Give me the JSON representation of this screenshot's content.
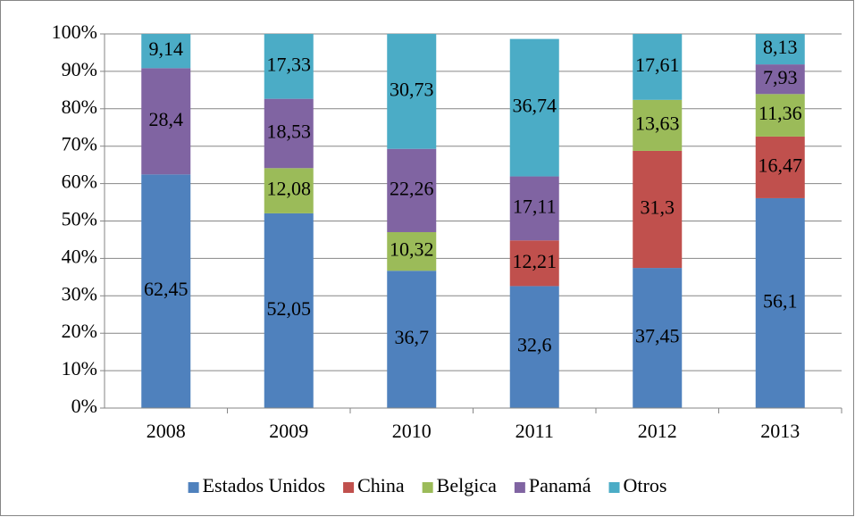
{
  "chart_data": {
    "type": "stacked_bar",
    "categories": [
      "2008",
      "2009",
      "2010",
      "2011",
      "2012",
      "2013"
    ],
    "series": [
      {
        "name": "Estados Unidos",
        "color": "#4f81bd",
        "values": [
          62.45,
          52.05,
          36.7,
          32.6,
          37.45,
          56.1
        ],
        "value_labels": [
          "62,45",
          "52,05",
          "36,7",
          "32,6",
          "37,45",
          "56,1"
        ]
      },
      {
        "name": "China",
        "color": "#c0504d",
        "values": [
          null,
          null,
          null,
          12.21,
          31.3,
          16.47
        ],
        "value_labels": [
          null,
          null,
          null,
          "12,21",
          "31,3",
          "16,47"
        ]
      },
      {
        "name": "Belgica",
        "color": "#9bbb59",
        "values": [
          null,
          12.08,
          10.32,
          null,
          13.63,
          11.36
        ],
        "value_labels": [
          null,
          "12,08",
          "10,32",
          null,
          "13,63",
          "11,36"
        ]
      },
      {
        "name": "Panamá",
        "color": "#8064a2",
        "values": [
          28.4,
          18.53,
          22.26,
          17.11,
          null,
          7.93
        ],
        "value_labels": [
          "28,4",
          "18,53",
          "22,26",
          "17,11",
          null,
          "7,93"
        ]
      },
      {
        "name": "Otros",
        "color": "#4bacc6",
        "values": [
          9.14,
          17.33,
          30.73,
          36.74,
          17.61,
          8.13
        ],
        "value_labels": [
          "9,14",
          "17,33",
          "30,73",
          "36,74",
          "17,61",
          "8,13"
        ]
      }
    ],
    "ylim": [
      0,
      100
    ],
    "yticks": [
      {
        "value": 0,
        "label": "0%"
      },
      {
        "value": 10,
        "label": "10%"
      },
      {
        "value": 20,
        "label": "20%"
      },
      {
        "value": 30,
        "label": "30%"
      },
      {
        "value": 40,
        "label": "40%"
      },
      {
        "value": 50,
        "label": "50%"
      },
      {
        "value": 60,
        "label": "60%"
      },
      {
        "value": 70,
        "label": "70%"
      },
      {
        "value": 80,
        "label": "80%"
      },
      {
        "value": 90,
        "label": "90%"
      },
      {
        "value": 100,
        "label": "100%"
      }
    ],
    "grid": true,
    "legend": "bottom"
  }
}
